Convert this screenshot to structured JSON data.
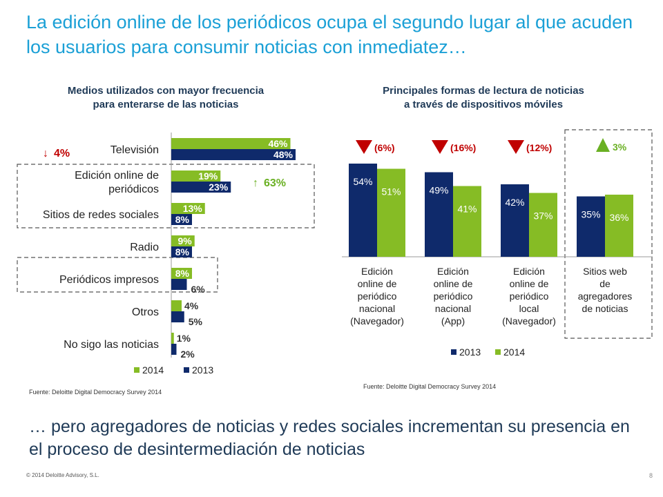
{
  "title": "La edición online de los periódicos ocupa el segundo lugar al que acuden los usuarios para consumir noticias con inmediatez…",
  "bottom_text": "… pero agregadores de noticias y redes sociales incrementan su presencia en el proceso de desintermediación de noticias",
  "footer": {
    "copyright": "© 2014 Deloitte Advisory, S.L.",
    "page_number": "8"
  },
  "colors": {
    "y2014": "#86bc25",
    "y2013": "#0f2a6b",
    "title": "#1ba0d6",
    "down": "#c00000",
    "up": "#6ab023"
  },
  "chart_data": [
    {
      "type": "bar",
      "orientation": "horizontal",
      "title": "Medios utilizados con mayor frecuencia para enterarse de las noticias",
      "title_lines": [
        "Medios utilizados con mayor frecuencia",
        "para enterarse de las noticias"
      ],
      "categories": [
        "Televisión",
        "Edición online de periódicos",
        "Sitios de redes sociales",
        "Radio",
        "Periódicos impresos",
        "Otros",
        "No sigo las noticias"
      ],
      "category_lines": [
        [
          "Televisión"
        ],
        [
          "Edición online de",
          "periódicos"
        ],
        [
          "Sitios de redes sociales"
        ],
        [
          "Radio"
        ],
        [
          "Periódicos impresos"
        ],
        [
          "Otros"
        ],
        [
          "No sigo las noticias"
        ]
      ],
      "series": [
        {
          "name": "2014",
          "values": [
            46,
            19,
            13,
            9,
            8,
            4,
            1
          ],
          "labels": [
            "46%",
            "19%",
            "13%",
            "9%",
            "8%",
            "4%",
            "1%"
          ]
        },
        {
          "name": "2013",
          "values": [
            48,
            23,
            8,
            8,
            6,
            5,
            2
          ],
          "labels": [
            "48%",
            "23%",
            "8%",
            "8%",
            "6%",
            "5%",
            "2%"
          ]
        }
      ],
      "annotations": [
        {
          "text": "4%",
          "direction": "down",
          "target": "Televisión"
        },
        {
          "text": "63%",
          "direction": "up",
          "target": "Edición online de periódicos y Sitios de redes sociales"
        }
      ],
      "legend": "bottom",
      "source": "Fuente: Deloitte Digital Democracy Survey 2014"
    },
    {
      "type": "bar",
      "orientation": "vertical",
      "title": "Principales formas de lectura de noticias a través de dispositivos móviles",
      "title_lines": [
        "Principales formas de lectura de noticias",
        "a través de dispositivos móviles"
      ],
      "categories": [
        "Edición online de periódico nacional (Navegador)",
        "Edición online de periódico nacional (App)",
        "Edición online de periódico local (Navegador)",
        "Sitios web de agregadores de noticias"
      ],
      "category_lines": [
        [
          "Edición",
          "online de",
          "periódico",
          "nacional",
          "(Navegador)"
        ],
        [
          "Edición",
          "online de",
          "periódico",
          "nacional",
          "(App)"
        ],
        [
          "Edición",
          "online de",
          "periódico",
          "local",
          "(Navegador)"
        ],
        [
          "Sitios web",
          "de",
          "agregadores",
          "de noticias"
        ]
      ],
      "series": [
        {
          "name": "2013",
          "values": [
            54,
            49,
            42,
            35
          ],
          "labels": [
            "54%",
            "49%",
            "42%",
            "35%"
          ]
        },
        {
          "name": "2014",
          "values": [
            51,
            41,
            37,
            36
          ],
          "labels": [
            "51%",
            "41%",
            "37%",
            "36%"
          ]
        }
      ],
      "changes": [
        {
          "text": "(6%)",
          "direction": "down"
        },
        {
          "text": "(16%)",
          "direction": "down"
        },
        {
          "text": "(12%)",
          "direction": "down"
        },
        {
          "text": "3%",
          "direction": "up"
        }
      ],
      "legend": "bottom",
      "source": "Fuente: Deloitte Digital Democracy Survey 2014"
    }
  ]
}
